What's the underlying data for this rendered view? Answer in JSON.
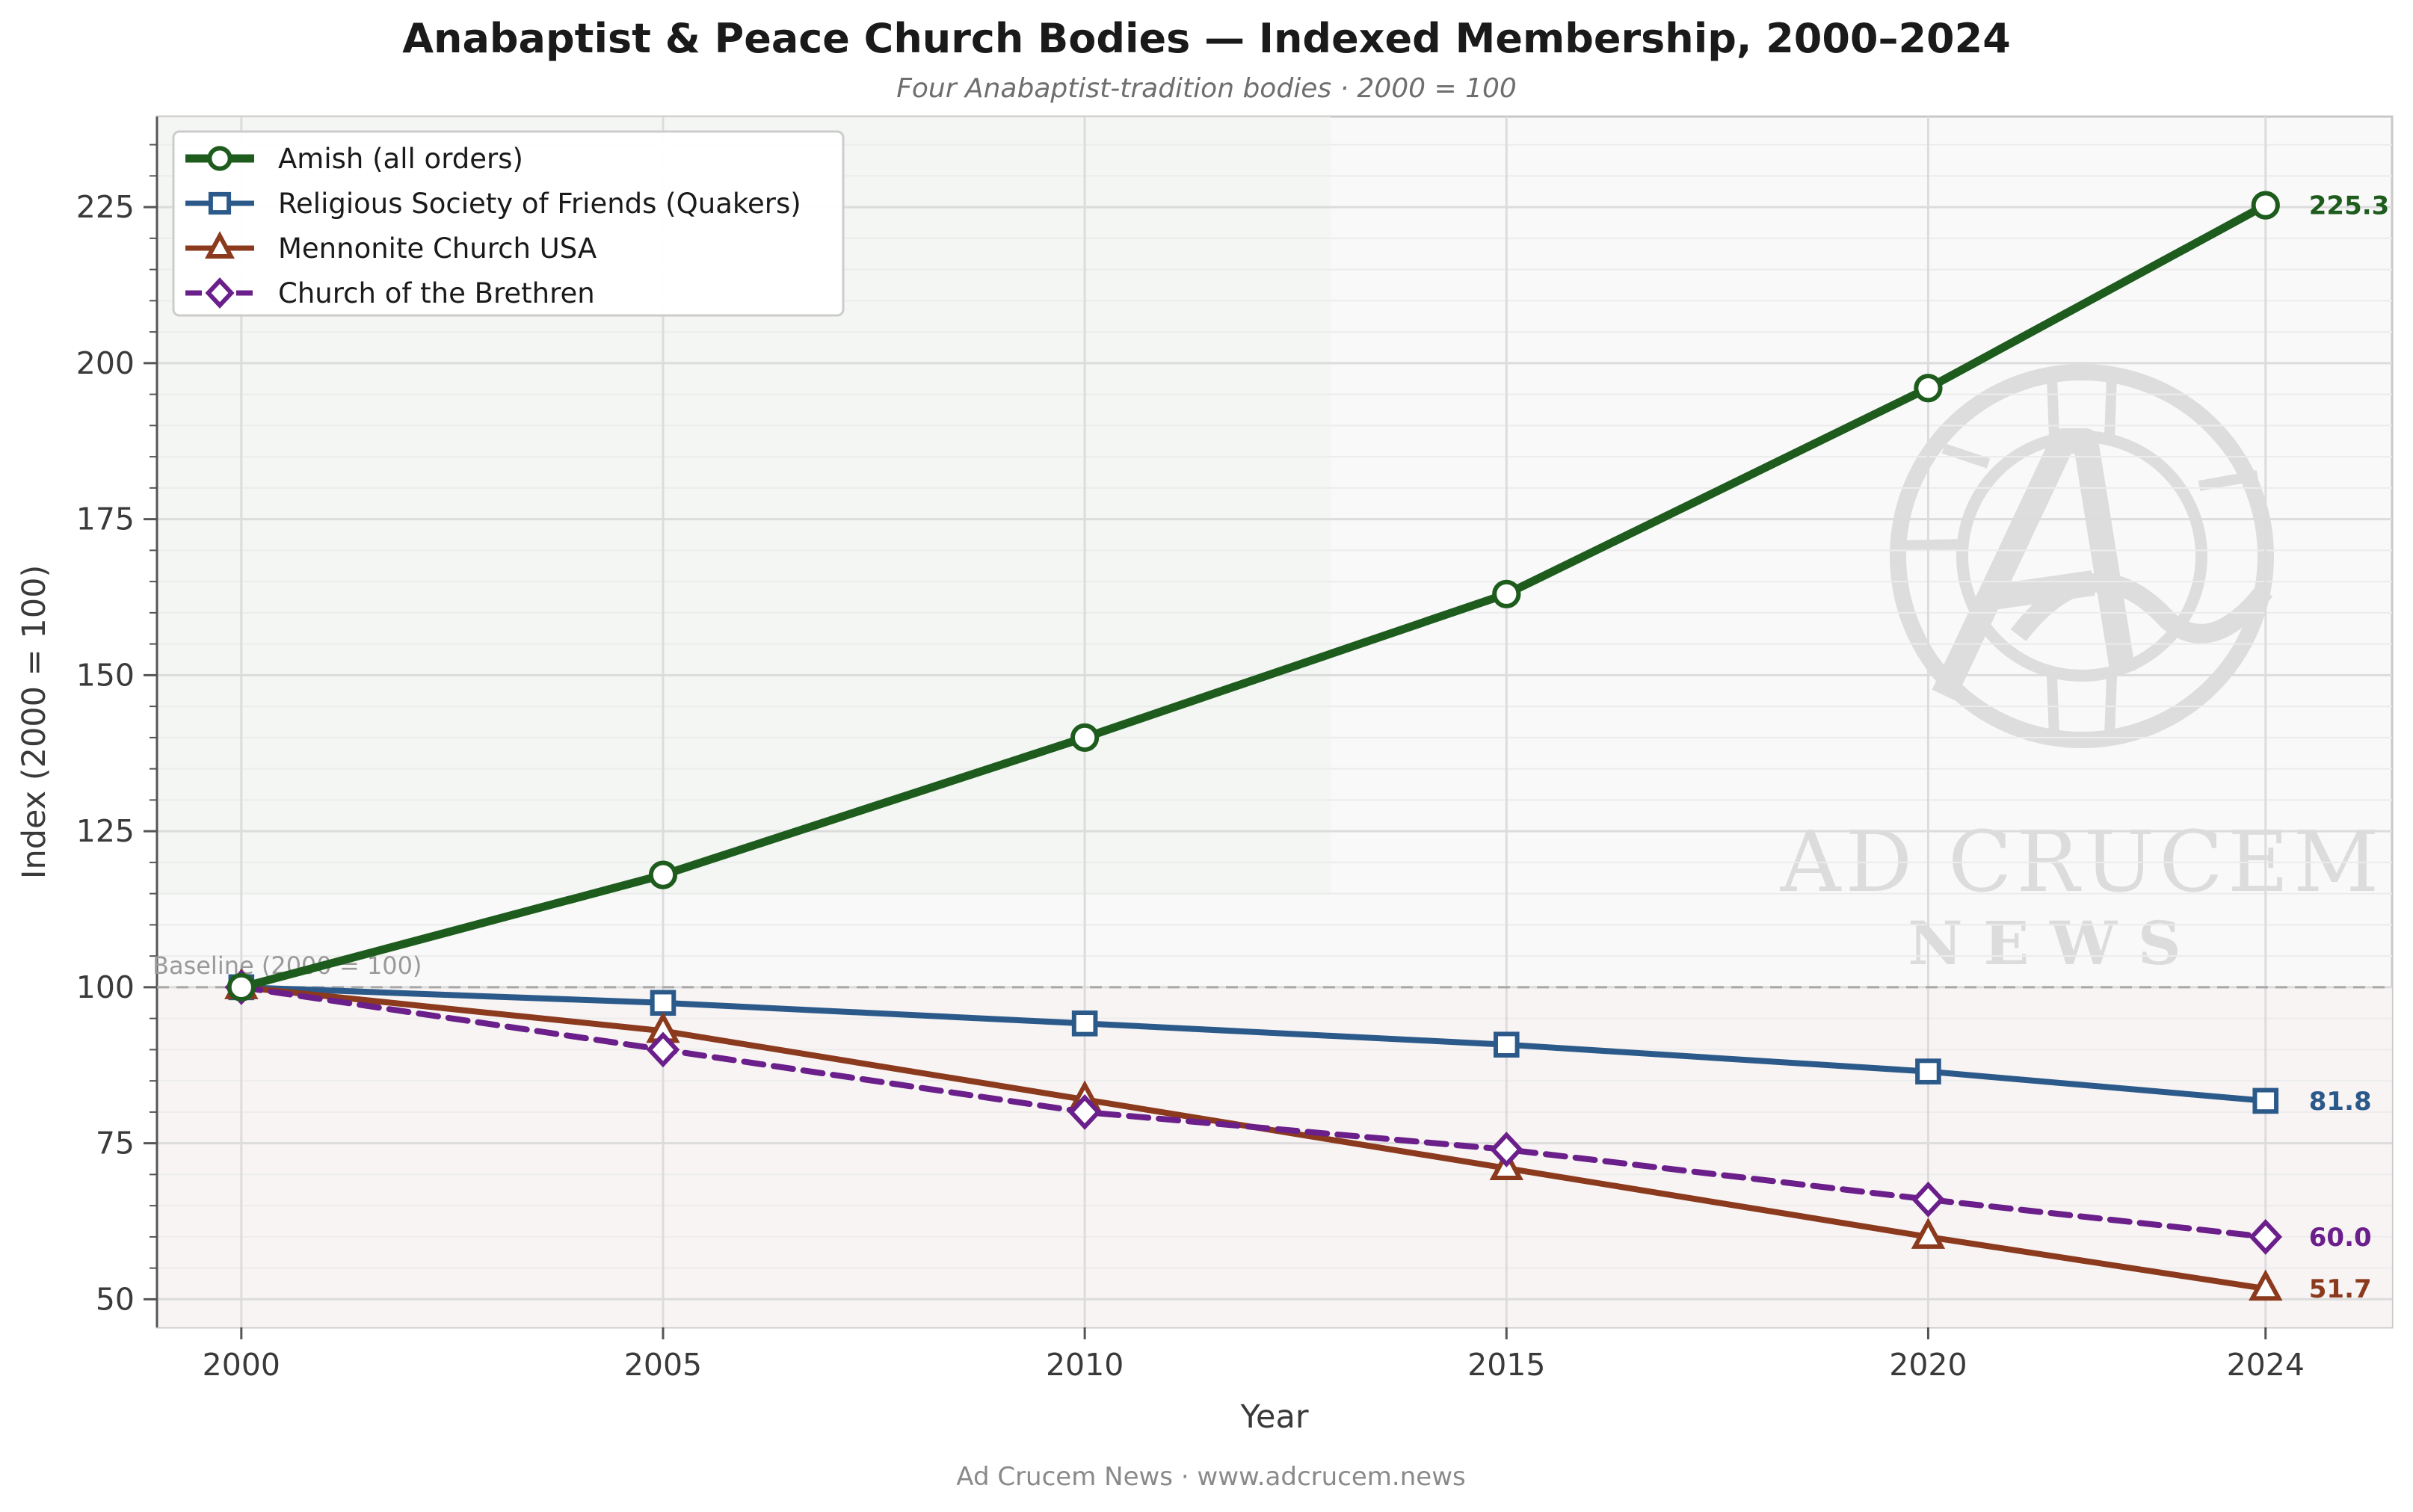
{
  "chart_data": {
    "type": "line",
    "title": "Anabaptist & Peace Church Bodies — Indexed Membership, 2000–2024",
    "subtitle": "Four Anabaptist-tradition bodies  ·  2000 = 100",
    "xlabel": "Year",
    "ylabel": "Index (2000 = 100)",
    "x": [
      2000,
      2005,
      2010,
      2015,
      2020,
      2024
    ],
    "xlim": [
      1999,
      2025.5
    ],
    "ylim": [
      45.5,
      239.5
    ],
    "y_ticks": [
      50,
      75,
      100,
      125,
      150,
      175,
      200,
      225
    ],
    "grid": true,
    "legend_position": "top-left",
    "baseline": {
      "value": 100,
      "label": "Baseline (2000 = 100)"
    },
    "series": [
      {
        "name": "Amish (all orders)",
        "values": [
          100,
          118,
          140,
          163,
          196,
          225.3
        ],
        "color": "#1e5c1e",
        "marker": "circle",
        "dash": "solid",
        "end_label": "225.3"
      },
      {
        "name": "Religious Society of Friends (Quakers)",
        "values": [
          100,
          97.5,
          94.2,
          90.8,
          86.5,
          81.8
        ],
        "color": "#2b5a8a",
        "marker": "square",
        "dash": "solid",
        "end_label": "81.8"
      },
      {
        "name": "Mennonite Church USA",
        "values": [
          100,
          93,
          82,
          71,
          60,
          51.7
        ],
        "color": "#8b3a1e",
        "marker": "triangle",
        "dash": "solid",
        "end_label": "51.7"
      },
      {
        "name": "Church of the Brethren",
        "values": [
          100,
          90,
          80,
          74,
          66,
          60.0
        ],
        "color": "#6a1f8a",
        "marker": "diamond",
        "dash": "dashed",
        "end_label": "60.0"
      }
    ]
  },
  "watermark": {
    "line1": "AD CRUCEM",
    "line2": "N E W S"
  },
  "footer": "Ad Crucem News  ·  www.adcrucem.news"
}
